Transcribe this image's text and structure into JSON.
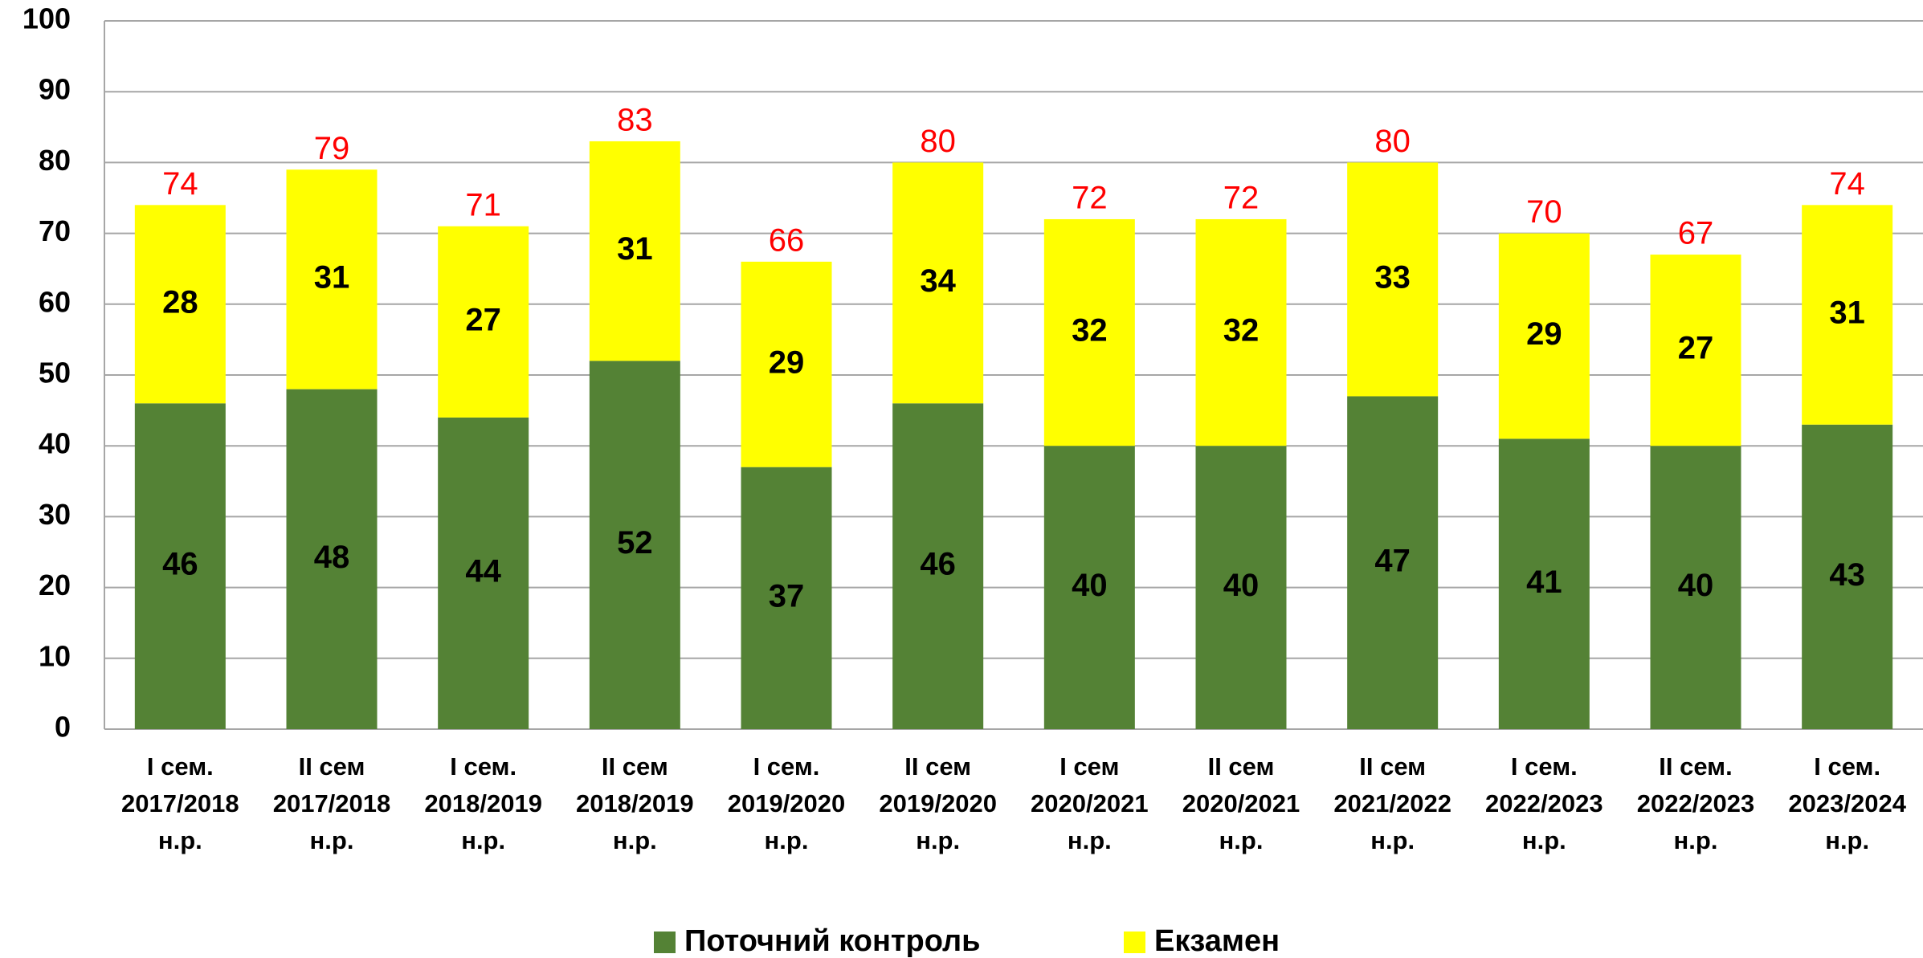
{
  "chart_data": {
    "type": "stacked_bar",
    "categories": [
      [
        "I сем.",
        "2017/2018",
        "н.р."
      ],
      [
        "II сем",
        "2017/2018",
        "н.р."
      ],
      [
        "I сем.",
        "2018/2019",
        "н.р."
      ],
      [
        "II сем",
        "2018/2019",
        "н.р."
      ],
      [
        "I сем.",
        "2019/2020",
        "н.р."
      ],
      [
        "II сем",
        "2019/2020",
        "н.р."
      ],
      [
        "I сем",
        "2020/2021",
        "н.р."
      ],
      [
        "II сем",
        "2020/2021",
        "н.р."
      ],
      [
        "II сем",
        "2021/2022",
        "н.р."
      ],
      [
        "I сем.",
        "2022/2023",
        "н.р."
      ],
      [
        "II сем.",
        "2022/2023",
        "н.р."
      ],
      [
        "I сем.",
        "2023/2024",
        "н.р."
      ]
    ],
    "series": [
      {
        "name": "Поточний контроль",
        "color": "#548235",
        "values": [
          46,
          48,
          44,
          52,
          37,
          46,
          40,
          40,
          47,
          41,
          40,
          43
        ]
      },
      {
        "name": "Екзамен",
        "color": "#ffff00",
        "values": [
          28,
          31,
          27,
          31,
          29,
          34,
          32,
          32,
          33,
          29,
          27,
          31
        ]
      }
    ],
    "totals": [
      74,
      79,
      71,
      83,
      66,
      80,
      72,
      72,
      80,
      70,
      67,
      74
    ],
    "totals_color": "#ff0000",
    "ylim": [
      0,
      100
    ],
    "yticks": [
      0,
      10,
      20,
      30,
      40,
      50,
      60,
      70,
      80,
      90,
      100
    ],
    "grid": true,
    "legend": "bottom"
  }
}
